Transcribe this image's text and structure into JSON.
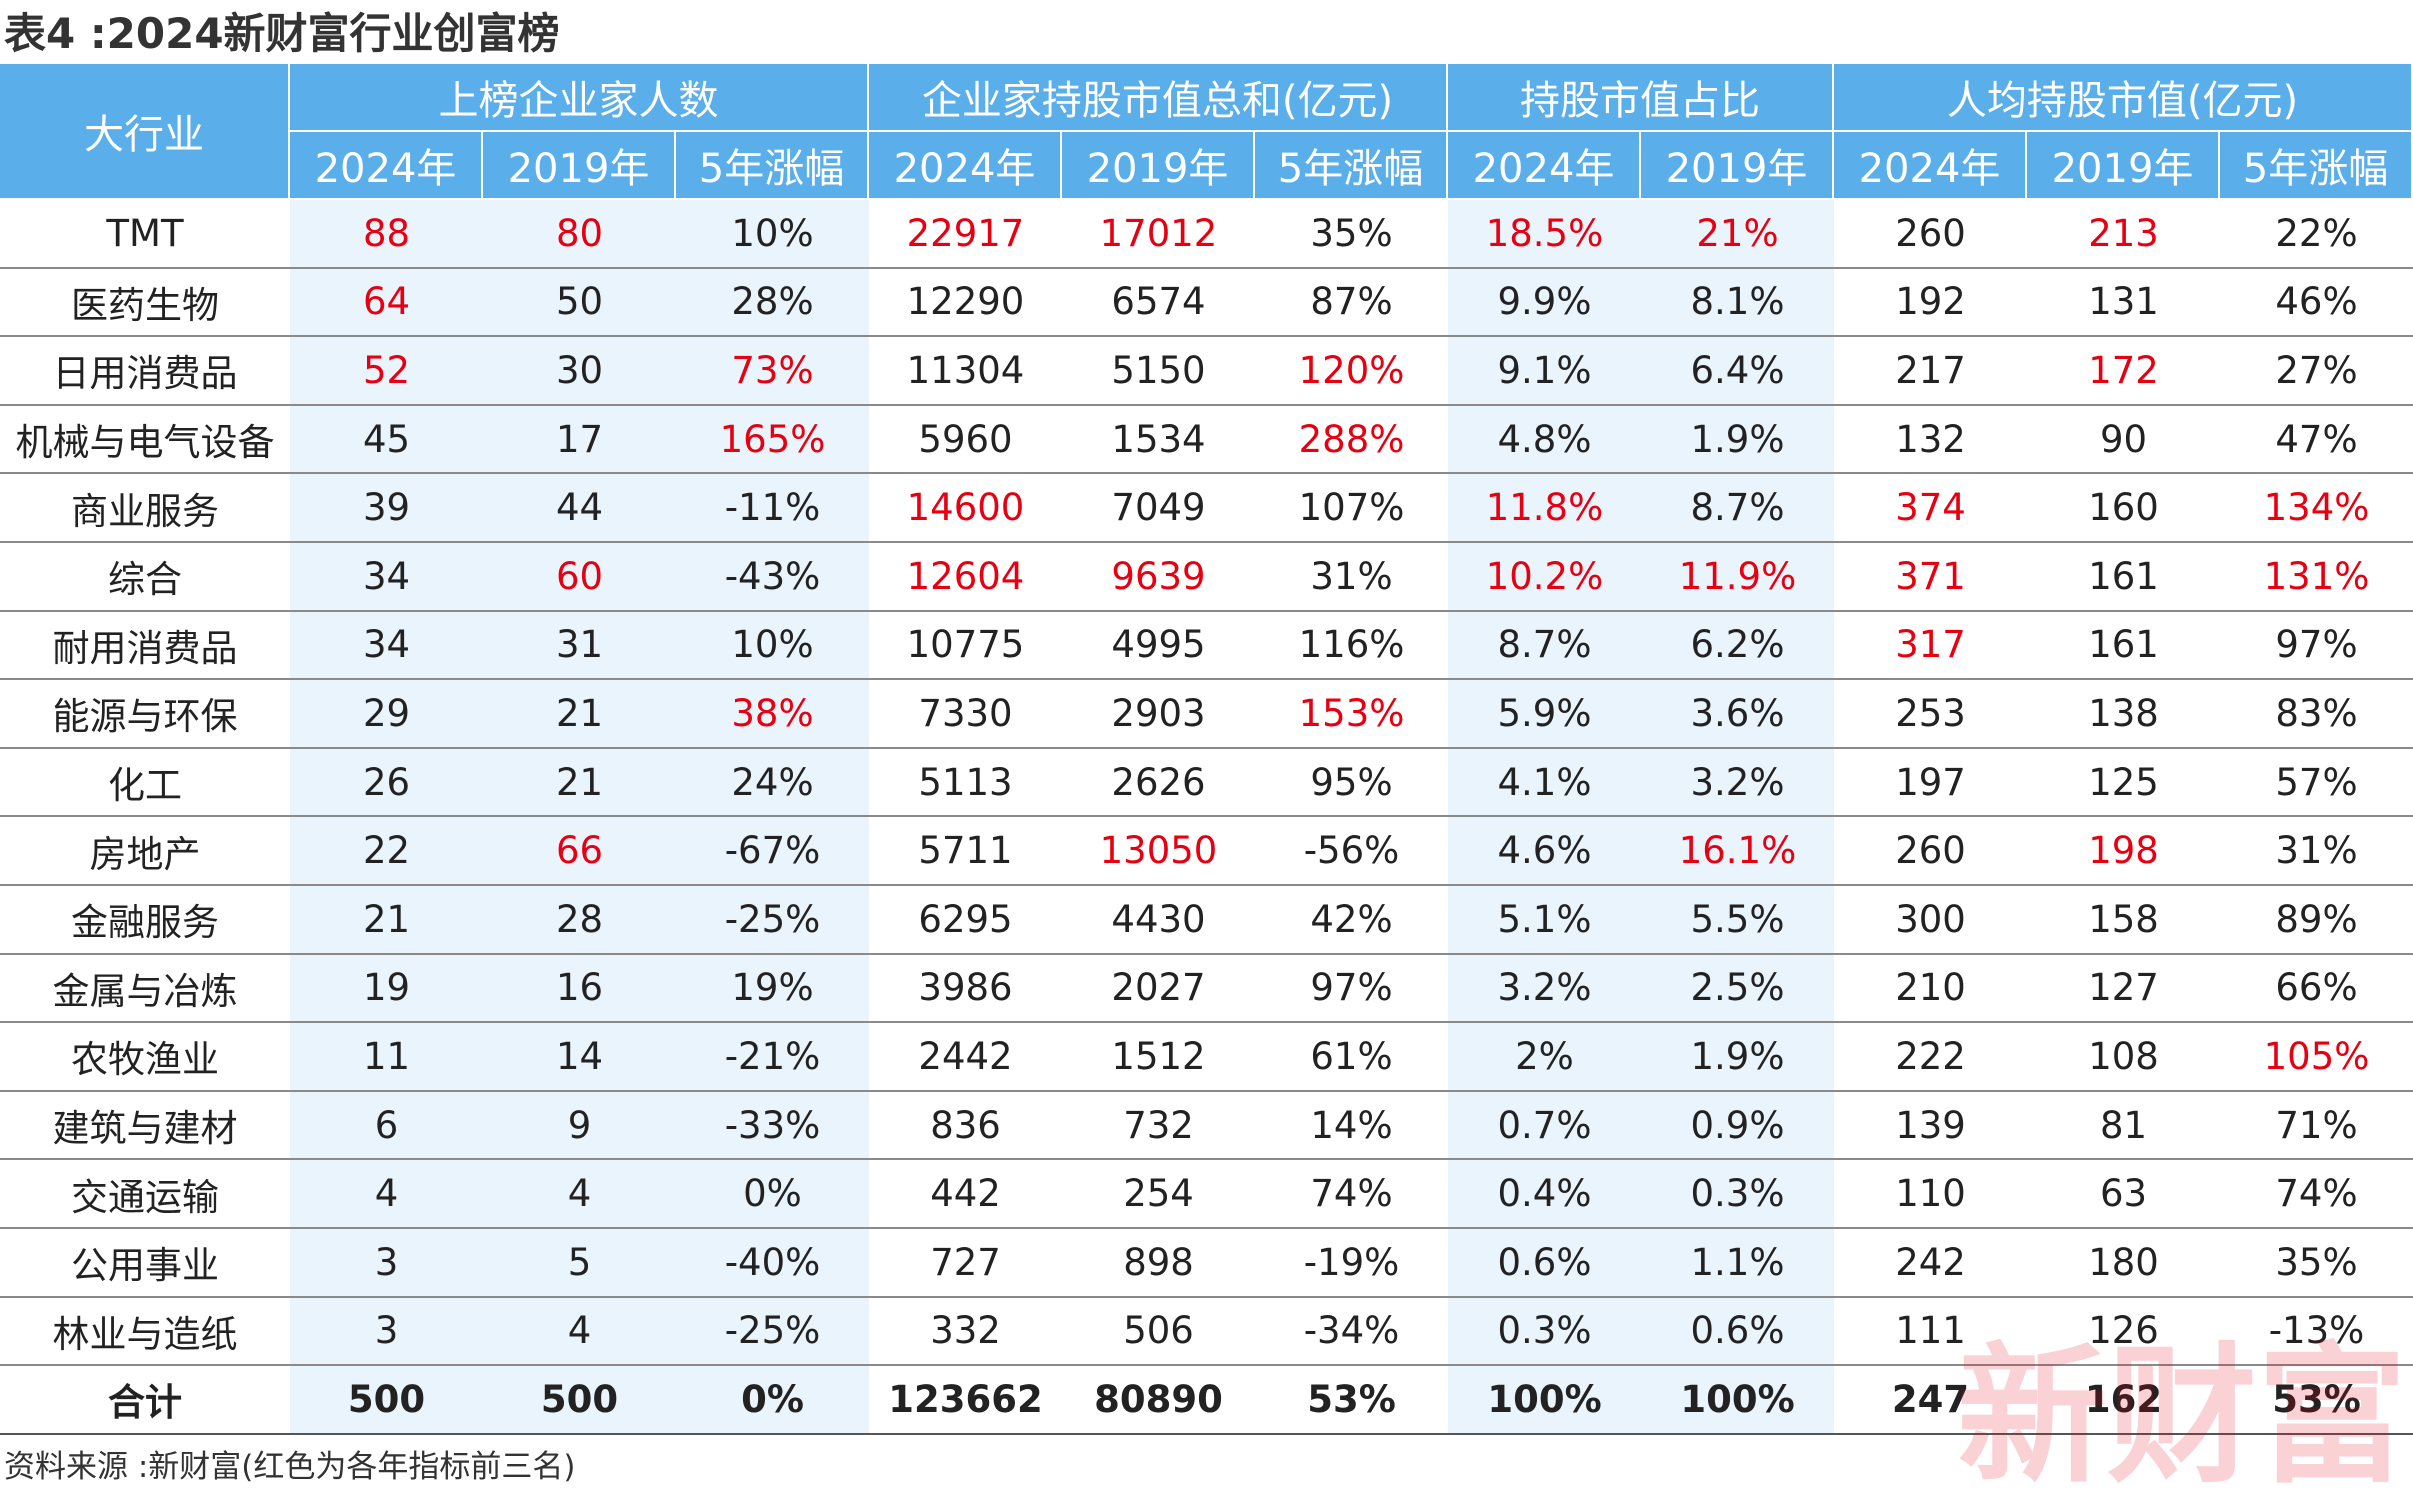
{
  "title": "表4 :2024新财富行业创富榜",
  "table": {
    "corner": "大行业",
    "groups": [
      {
        "label": "上榜企业家人数",
        "span": 3
      },
      {
        "label": "企业家持股市值总和(亿元)",
        "span": 3
      },
      {
        "label": "持股市值占比",
        "span": 2
      },
      {
        "label": "人均持股市值(亿元)",
        "span": 3
      }
    ],
    "subheaders": [
      "2024年",
      "2019年",
      "5年涨幅",
      "2024年",
      "2019年",
      "5年涨幅",
      "2024年",
      "2019年",
      "2024年",
      "2019年",
      "5年涨幅"
    ],
    "highlight_color": "#e60012",
    "rows": [
      {
        "name": "TMT",
        "cells": [
          "88",
          "80",
          "10%",
          "22917",
          "17012",
          "35%",
          "18.5%",
          "21%",
          "260",
          "213",
          "22%"
        ],
        "red": [
          0,
          1,
          3,
          4,
          6,
          7,
          9
        ]
      },
      {
        "name": "医药生物",
        "cells": [
          "64",
          "50",
          "28%",
          "12290",
          "6574",
          "87%",
          "9.9%",
          "8.1%",
          "192",
          "131",
          "46%"
        ],
        "red": [
          0
        ]
      },
      {
        "name": "日用消费品",
        "cells": [
          "52",
          "30",
          "73%",
          "11304",
          "5150",
          "120%",
          "9.1%",
          "6.4%",
          "217",
          "172",
          "27%"
        ],
        "red": [
          0,
          2,
          5,
          9
        ]
      },
      {
        "name": "机械与电气设备",
        "cells": [
          "45",
          "17",
          "165%",
          "5960",
          "1534",
          "288%",
          "4.8%",
          "1.9%",
          "132",
          "90",
          "47%"
        ],
        "red": [
          2,
          5
        ]
      },
      {
        "name": "商业服务",
        "cells": [
          "39",
          "44",
          "-11%",
          "14600",
          "7049",
          "107%",
          "11.8%",
          "8.7%",
          "374",
          "160",
          "134%"
        ],
        "red": [
          3,
          6,
          8,
          10
        ]
      },
      {
        "name": "综合",
        "cells": [
          "34",
          "60",
          "-43%",
          "12604",
          "9639",
          "31%",
          "10.2%",
          "11.9%",
          "371",
          "161",
          "131%"
        ],
        "red": [
          1,
          3,
          4,
          6,
          7,
          8,
          10
        ]
      },
      {
        "name": "耐用消费品",
        "cells": [
          "34",
          "31",
          "10%",
          "10775",
          "4995",
          "116%",
          "8.7%",
          "6.2%",
          "317",
          "161",
          "97%"
        ],
        "red": [
          8
        ]
      },
      {
        "name": "能源与环保",
        "cells": [
          "29",
          "21",
          "38%",
          "7330",
          "2903",
          "153%",
          "5.9%",
          "3.6%",
          "253",
          "138",
          "83%"
        ],
        "red": [
          2,
          5
        ]
      },
      {
        "name": "化工",
        "cells": [
          "26",
          "21",
          "24%",
          "5113",
          "2626",
          "95%",
          "4.1%",
          "3.2%",
          "197",
          "125",
          "57%"
        ],
        "red": []
      },
      {
        "name": "房地产",
        "cells": [
          "22",
          "66",
          "-67%",
          "5711",
          "13050",
          "-56%",
          "4.6%",
          "16.1%",
          "260",
          "198",
          "31%"
        ],
        "red": [
          1,
          4,
          7,
          9
        ]
      },
      {
        "name": "金融服务",
        "cells": [
          "21",
          "28",
          "-25%",
          "6295",
          "4430",
          "42%",
          "5.1%",
          "5.5%",
          "300",
          "158",
          "89%"
        ],
        "red": []
      },
      {
        "name": "金属与冶炼",
        "cells": [
          "19",
          "16",
          "19%",
          "3986",
          "2027",
          "97%",
          "3.2%",
          "2.5%",
          "210",
          "127",
          "66%"
        ],
        "red": []
      },
      {
        "name": "农牧渔业",
        "cells": [
          "11",
          "14",
          "-21%",
          "2442",
          "1512",
          "61%",
          "2%",
          "1.9%",
          "222",
          "108",
          "105%"
        ],
        "red": [
          10
        ]
      },
      {
        "name": "建筑与建材",
        "cells": [
          "6",
          "9",
          "-33%",
          "836",
          "732",
          "14%",
          "0.7%",
          "0.9%",
          "139",
          "81",
          "71%"
        ],
        "red": []
      },
      {
        "name": "交通运输",
        "cells": [
          "4",
          "4",
          "0%",
          "442",
          "254",
          "74%",
          "0.4%",
          "0.3%",
          "110",
          "63",
          "74%"
        ],
        "red": []
      },
      {
        "name": "公用事业",
        "cells": [
          "3",
          "5",
          "-40%",
          "727",
          "898",
          "-19%",
          "0.6%",
          "1.1%",
          "242",
          "180",
          "35%"
        ],
        "red": []
      },
      {
        "name": "林业与造纸",
        "cells": [
          "3",
          "4",
          "-25%",
          "332",
          "506",
          "-34%",
          "0.3%",
          "0.6%",
          "111",
          "126",
          "-13%"
        ],
        "red": []
      }
    ],
    "total": {
      "name": "合计",
      "cells": [
        "500",
        "500",
        "0%",
        "123662",
        "80890",
        "53%",
        "100%",
        "100%",
        "247",
        "162",
        "53%"
      ]
    }
  },
  "source": "资料来源 :新财富(红色为各年指标前三名)",
  "watermark": "新财富"
}
